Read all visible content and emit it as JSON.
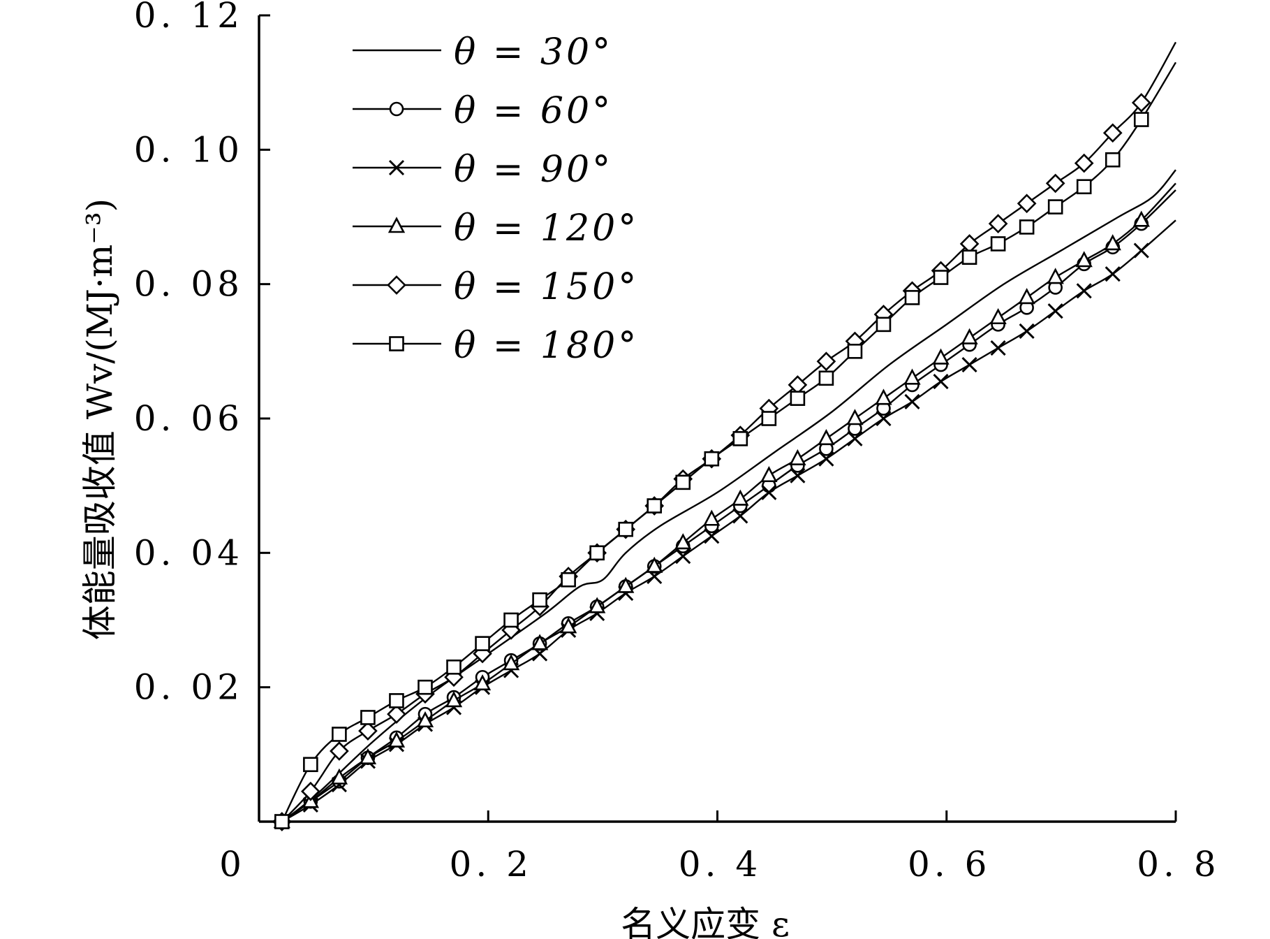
{
  "chart_data": {
    "type": "line",
    "xlabel": "名义应变 ε",
    "ylabel": "体能量吸收值 Wv/(MJ·m⁻³)",
    "xlim": [
      0,
      0.8
    ],
    "ylim": [
      0,
      0.12
    ],
    "x_ticks": [
      0,
      0.2,
      0.4,
      0.6,
      0.8
    ],
    "x_tick_labels": [
      "0",
      "0. 2",
      "0. 4",
      "0. 6",
      "0. 8"
    ],
    "y_ticks": [
      0.02,
      0.04,
      0.06,
      0.08,
      0.1,
      0.12
    ],
    "y_tick_labels": [
      "0. 02",
      "0. 04",
      "0. 06",
      "0. 08",
      "0. 10",
      "0. 12"
    ],
    "grid": false,
    "legend_position": "top-left",
    "series": [
      {
        "name": "θ = 30°",
        "marker": "none",
        "x": [
          0.02,
          0.05,
          0.1,
          0.15,
          0.2,
          0.25,
          0.28,
          0.3,
          0.32,
          0.35,
          0.4,
          0.45,
          0.5,
          0.55,
          0.6,
          0.65,
          0.7,
          0.75,
          0.78,
          0.8
        ],
        "y": [
          0,
          0.004,
          0.012,
          0.019,
          0.025,
          0.031,
          0.035,
          0.036,
          0.04,
          0.044,
          0.049,
          0.055,
          0.061,
          0.068,
          0.074,
          0.08,
          0.085,
          0.09,
          0.093,
          0.097
        ]
      },
      {
        "name": "θ = 60°",
        "marker": "circle",
        "x": [
          0.02,
          0.045,
          0.07,
          0.095,
          0.12,
          0.145,
          0.17,
          0.195,
          0.22,
          0.245,
          0.27,
          0.295,
          0.32,
          0.345,
          0.37,
          0.395,
          0.42,
          0.445,
          0.47,
          0.495,
          0.52,
          0.545,
          0.57,
          0.595,
          0.62,
          0.645,
          0.67,
          0.695,
          0.72,
          0.745,
          0.77,
          0.8
        ],
        "y": [
          0,
          0.003,
          0.006,
          0.0095,
          0.0125,
          0.016,
          0.0185,
          0.0215,
          0.024,
          0.0265,
          0.0295,
          0.032,
          0.035,
          0.038,
          0.041,
          0.044,
          0.047,
          0.05,
          0.053,
          0.0555,
          0.0585,
          0.0615,
          0.065,
          0.068,
          0.071,
          0.074,
          0.0765,
          0.0795,
          0.083,
          0.0855,
          0.089,
          0.094
        ]
      },
      {
        "name": "θ = 90°",
        "marker": "x",
        "x": [
          0.02,
          0.045,
          0.07,
          0.095,
          0.12,
          0.145,
          0.17,
          0.195,
          0.22,
          0.245,
          0.27,
          0.295,
          0.32,
          0.345,
          0.37,
          0.395,
          0.42,
          0.445,
          0.47,
          0.495,
          0.52,
          0.545,
          0.57,
          0.595,
          0.62,
          0.645,
          0.67,
          0.695,
          0.72,
          0.745,
          0.77,
          0.8
        ],
        "y": [
          0,
          0.0025,
          0.0055,
          0.009,
          0.0115,
          0.0145,
          0.017,
          0.02,
          0.0225,
          0.025,
          0.0285,
          0.031,
          0.034,
          0.0365,
          0.0395,
          0.0425,
          0.0455,
          0.049,
          0.0515,
          0.054,
          0.057,
          0.06,
          0.0625,
          0.0655,
          0.068,
          0.0705,
          0.073,
          0.076,
          0.079,
          0.0815,
          0.085,
          0.0895
        ]
      },
      {
        "name": "θ = 120°",
        "marker": "triangle",
        "x": [
          0.02,
          0.045,
          0.07,
          0.095,
          0.12,
          0.145,
          0.17,
          0.195,
          0.22,
          0.245,
          0.27,
          0.295,
          0.32,
          0.345,
          0.37,
          0.395,
          0.42,
          0.445,
          0.47,
          0.495,
          0.52,
          0.545,
          0.57,
          0.595,
          0.62,
          0.645,
          0.67,
          0.695,
          0.72,
          0.745,
          0.77,
          0.8
        ],
        "y": [
          0,
          0.003,
          0.0065,
          0.0095,
          0.012,
          0.015,
          0.018,
          0.0205,
          0.0235,
          0.0265,
          0.029,
          0.032,
          0.035,
          0.038,
          0.0415,
          0.045,
          0.048,
          0.0515,
          0.054,
          0.057,
          0.06,
          0.063,
          0.066,
          0.069,
          0.072,
          0.075,
          0.078,
          0.081,
          0.0835,
          0.086,
          0.0895,
          0.095
        ]
      },
      {
        "name": "θ = 150°",
        "marker": "diamond",
        "x": [
          0.02,
          0.045,
          0.07,
          0.095,
          0.12,
          0.145,
          0.17,
          0.195,
          0.22,
          0.245,
          0.27,
          0.295,
          0.32,
          0.345,
          0.37,
          0.395,
          0.42,
          0.445,
          0.47,
          0.495,
          0.52,
          0.545,
          0.57,
          0.595,
          0.62,
          0.645,
          0.67,
          0.695,
          0.72,
          0.745,
          0.77,
          0.8
        ],
        "y": [
          0,
          0.0045,
          0.0105,
          0.0135,
          0.016,
          0.019,
          0.0215,
          0.025,
          0.0285,
          0.032,
          0.0365,
          0.04,
          0.0435,
          0.047,
          0.051,
          0.054,
          0.0575,
          0.0615,
          0.065,
          0.0685,
          0.0715,
          0.0755,
          0.079,
          0.082,
          0.086,
          0.089,
          0.092,
          0.095,
          0.098,
          0.1025,
          0.107,
          0.116
        ]
      },
      {
        "name": "θ = 180°",
        "marker": "square",
        "x": [
          0.02,
          0.045,
          0.07,
          0.095,
          0.12,
          0.145,
          0.17,
          0.195,
          0.22,
          0.245,
          0.27,
          0.295,
          0.32,
          0.345,
          0.37,
          0.395,
          0.42,
          0.445,
          0.47,
          0.495,
          0.52,
          0.545,
          0.57,
          0.595,
          0.62,
          0.645,
          0.67,
          0.695,
          0.72,
          0.745,
          0.77,
          0.8
        ],
        "y": [
          0,
          0.0085,
          0.013,
          0.0155,
          0.018,
          0.02,
          0.023,
          0.0265,
          0.03,
          0.033,
          0.036,
          0.04,
          0.0435,
          0.047,
          0.0505,
          0.054,
          0.057,
          0.06,
          0.063,
          0.066,
          0.07,
          0.074,
          0.078,
          0.081,
          0.084,
          0.086,
          0.0885,
          0.0915,
          0.0945,
          0.0985,
          0.1045,
          0.113
        ]
      }
    ]
  }
}
